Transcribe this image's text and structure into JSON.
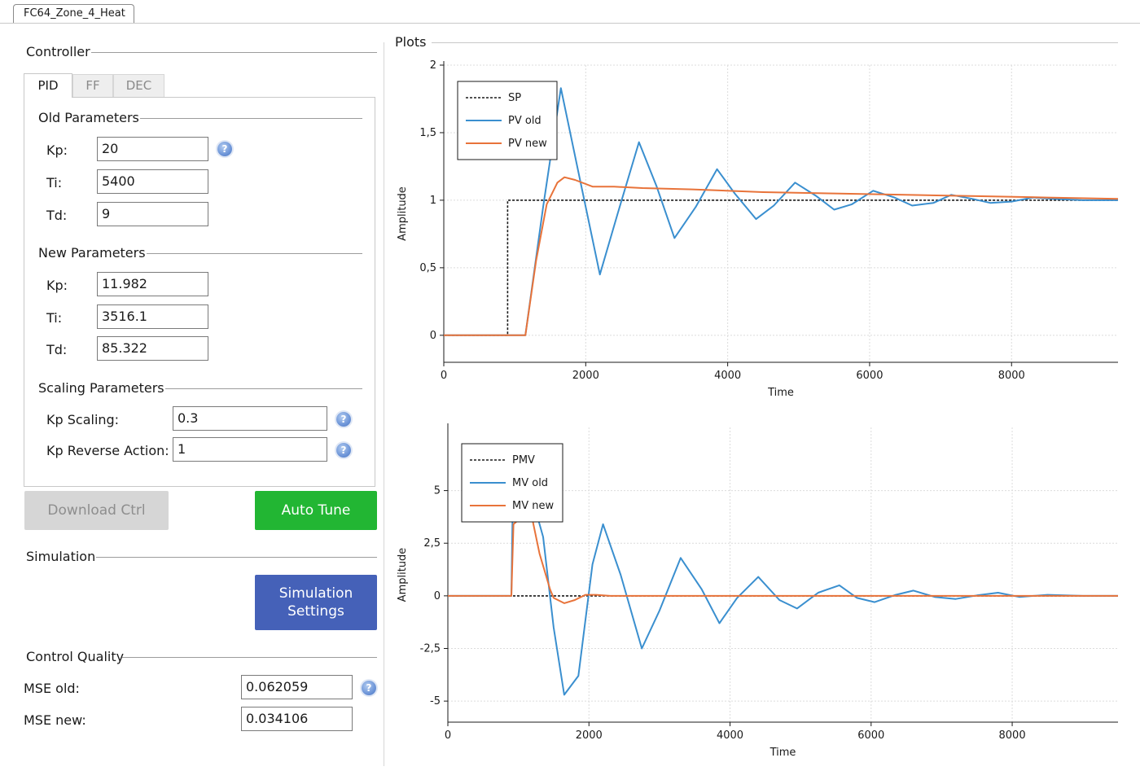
{
  "document_tab": {
    "label": "FC64_Zone_4_Heat"
  },
  "controller": {
    "title": "Controller",
    "tabs": [
      {
        "label": "PID",
        "active": true
      },
      {
        "label": "FF",
        "active": false
      },
      {
        "label": "DEC",
        "active": false
      }
    ],
    "old_parameters": {
      "title": "Old Parameters",
      "kp": {
        "label": "Kp:",
        "value": "20"
      },
      "ti": {
        "label": "Ti:",
        "value": "5400"
      },
      "td": {
        "label": "Td:",
        "value": "9"
      }
    },
    "new_parameters": {
      "title": "New Parameters",
      "kp": {
        "label": "Kp:",
        "value": "11.982"
      },
      "ti": {
        "label": "Ti:",
        "value": "3516.1"
      },
      "td": {
        "label": "Td:",
        "value": "85.322"
      }
    },
    "scaling_parameters": {
      "title": "Scaling Parameters",
      "kp_scaling": {
        "label": "Kp Scaling:",
        "value": "0.3"
      },
      "kp_reverse": {
        "label": "Kp Reverse Action:",
        "value": "1"
      }
    },
    "download_label": "Download Ctrl",
    "autotune_label": "Auto Tune"
  },
  "simulation": {
    "title": "Simulation",
    "settings_line1": "Simulation",
    "settings_line2": "Settings"
  },
  "control_quality": {
    "title": "Control Quality",
    "mse_old": {
      "label": "MSE old:",
      "value": "0.062059"
    },
    "mse_new": {
      "label": "MSE new:",
      "value": "0.034106"
    }
  },
  "plots": {
    "title": "Plots"
  },
  "colors": {
    "blue": "#3a8fcf",
    "orange": "#e8733a",
    "setpoint": "#1a1a1a",
    "autotune": "#22b633",
    "simulation": "#4561b8"
  },
  "chart_data": [
    {
      "type": "line",
      "title": "",
      "xlabel": "Time",
      "ylabel": "Amplitude",
      "xlim": [
        0,
        9500
      ],
      "ylim": [
        -0.2,
        2.0
      ],
      "xticks": [
        "0",
        "2000",
        "4000",
        "6000",
        "8000"
      ],
      "yticks": [
        "0",
        "0,5",
        "1",
        "1,5",
        "2"
      ],
      "legend": "top-left",
      "series": [
        {
          "name": "SP",
          "style": "dashed",
          "x": [
            0,
            900,
            900,
            9500
          ],
          "y": [
            0,
            0,
            1,
            1
          ]
        },
        {
          "name": "PV old",
          "x": [
            0,
            1150,
            1400,
            1650,
            1900,
            2200,
            2450,
            2750,
            3000,
            3250,
            3550,
            3850,
            4100,
            4400,
            4650,
            4950,
            5250,
            5500,
            5750,
            6050,
            6350,
            6600,
            6900,
            7150,
            7450,
            7700,
            8000,
            8300,
            8600,
            9000,
            9500
          ],
          "y": [
            0,
            0,
            0.95,
            1.83,
            1.2,
            0.45,
            0.9,
            1.43,
            1.1,
            0.72,
            0.95,
            1.23,
            1.05,
            0.86,
            0.96,
            1.13,
            1.03,
            0.93,
            0.97,
            1.07,
            1.02,
            0.96,
            0.98,
            1.04,
            1.01,
            0.98,
            0.99,
            1.02,
            1.01,
            1.0,
            1.0
          ]
        },
        {
          "name": "PV new",
          "x": [
            0,
            1150,
            1300,
            1450,
            1600,
            1700,
            1850,
            2100,
            2400,
            2800,
            3500,
            4500,
            5500,
            6500,
            7500,
            8500,
            9500
          ],
          "y": [
            0,
            0,
            0.55,
            0.97,
            1.13,
            1.17,
            1.15,
            1.1,
            1.1,
            1.09,
            1.08,
            1.06,
            1.05,
            1.04,
            1.03,
            1.02,
            1.01
          ]
        }
      ]
    },
    {
      "type": "line",
      "title": "",
      "xlabel": "Time",
      "ylabel": "Amplitude",
      "xlim": [
        0,
        9500
      ],
      "ylim": [
        -6,
        8
      ],
      "xticks": [
        "0",
        "2000",
        "4000",
        "6000",
        "8000"
      ],
      "yticks": [
        "-5",
        "-2,5",
        "0",
        "2,5",
        "5"
      ],
      "legend": "top-left",
      "series": [
        {
          "name": "PMV",
          "style": "dashed",
          "x": [
            0,
            9500
          ],
          "y": [
            0,
            0
          ]
        },
        {
          "name": "MV old",
          "x": [
            0,
            900,
            920,
            1000,
            1150,
            1350,
            1500,
            1650,
            1850,
            2050,
            2200,
            2450,
            2750,
            3000,
            3300,
            3600,
            3850,
            4100,
            4400,
            4700,
            4950,
            5250,
            5550,
            5800,
            6050,
            6350,
            6600,
            6900,
            7200,
            7500,
            7800,
            8100,
            8500,
            9000,
            9500
          ],
          "y": [
            0,
            0,
            4.5,
            5.5,
            5.2,
            2.8,
            -1.5,
            -4.7,
            -3.8,
            1.5,
            3.4,
            1.0,
            -2.5,
            -0.7,
            1.8,
            0.3,
            -1.3,
            -0.1,
            0.9,
            -0.2,
            -0.6,
            0.15,
            0.5,
            -0.1,
            -0.3,
            0.05,
            0.25,
            -0.05,
            -0.15,
            0.02,
            0.15,
            -0.05,
            0.05,
            0.0,
            0.0
          ]
        },
        {
          "name": "MV new",
          "x": [
            0,
            900,
            930,
            1000,
            1150,
            1200,
            1300,
            1450,
            1500,
            1650,
            1800,
            1950,
            2100,
            2300,
            2600,
            3000,
            4000,
            5000,
            6000,
            7000,
            8000,
            9500
          ],
          "y": [
            0,
            0,
            3.4,
            3.6,
            3.8,
            3.6,
            2.0,
            0.3,
            -0.1,
            -0.35,
            -0.2,
            0.05,
            0.05,
            0.0,
            0.0,
            0.0,
            0.0,
            0.0,
            0.0,
            0.0,
            0.0,
            0.0
          ]
        }
      ]
    }
  ]
}
